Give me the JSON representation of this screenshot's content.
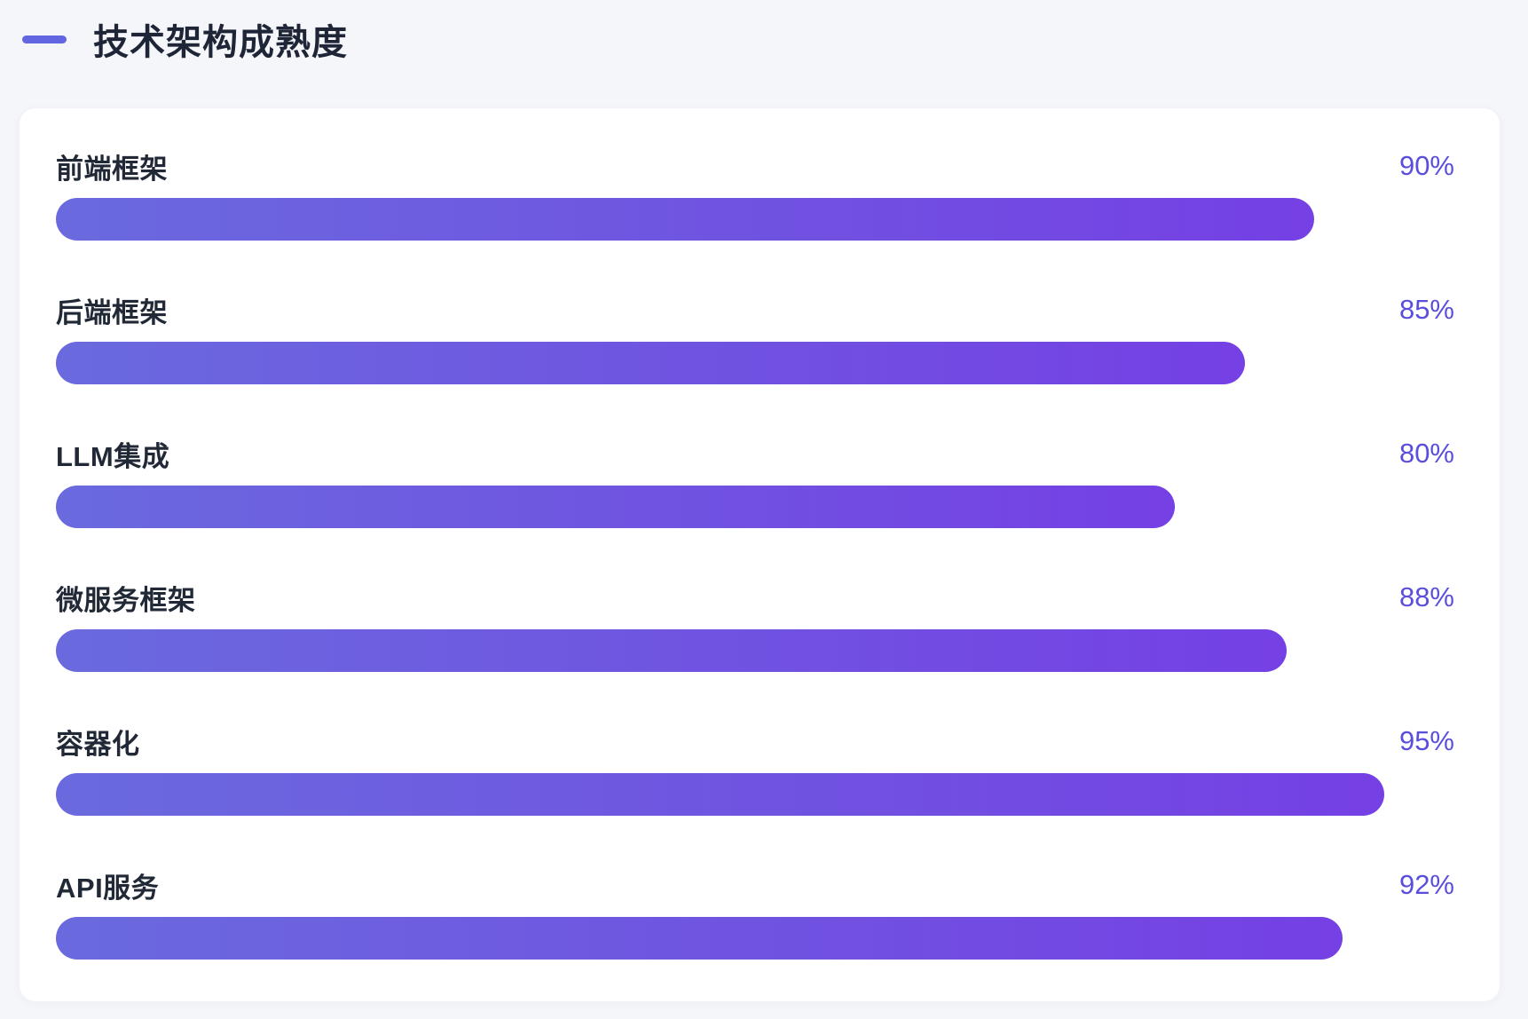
{
  "page": {
    "background": "#f5f6fa"
  },
  "header": {
    "title": "技术架构成熟度",
    "accent_color": "#6366e1"
  },
  "chart_data": {
    "type": "bar",
    "orientation": "horizontal",
    "title": "技术架构成熟度",
    "categories": [
      "前端框架",
      "后端框架",
      "LLM集成",
      "微服务框架",
      "容器化",
      "API服务"
    ],
    "values": [
      90,
      85,
      80,
      88,
      95,
      92
    ],
    "value_labels": [
      "90%",
      "85%",
      "80%",
      "88%",
      "95%",
      "92%"
    ],
    "xlim": [
      0,
      100
    ],
    "grid": false,
    "legend": false,
    "bar_gradient": [
      "#6a6ade",
      "#7540e4"
    ],
    "value_color": "#5a4edd",
    "label_color": "#212936"
  }
}
